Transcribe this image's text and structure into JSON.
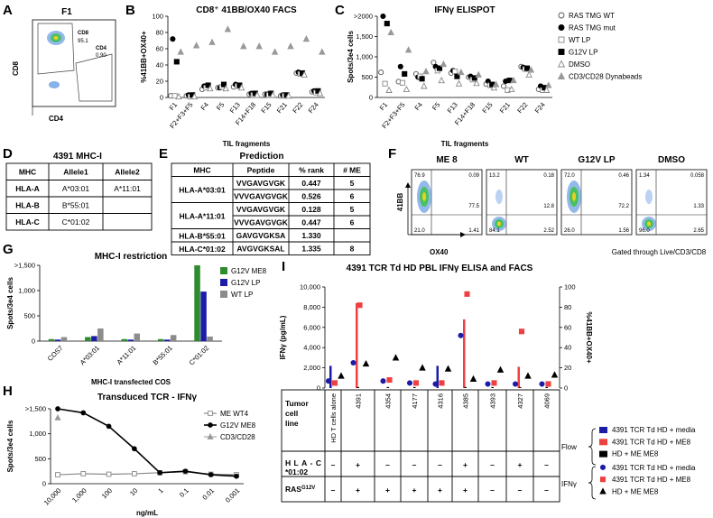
{
  "panels": {
    "A": {
      "letter": "A",
      "title": "F1",
      "x_axis": "CD4",
      "y_axis": "CD8",
      "gate1_label": "CD8",
      "gate1_value": "95.1",
      "gate2_label": "CD4",
      "gate2_value": "0.90"
    },
    "B": {
      "letter": "B"
    },
    "C": {
      "letter": "C"
    },
    "D": {
      "letter": "D",
      "title": "4391 MHC-I",
      "headers": [
        "MHC",
        "Allele1",
        "Allele2"
      ],
      "rows": [
        [
          "HLA-A",
          "A*03:01",
          "A*11:01"
        ],
        [
          "HLA-B",
          "B*55:01",
          ""
        ],
        [
          "HLA-C",
          "C*01:02",
          ""
        ]
      ]
    },
    "E": {
      "letter": "E",
      "title": "Prediction",
      "headers": [
        "MHC",
        "Peptide",
        "% rank",
        "# ME"
      ],
      "rows": [
        {
          "mhc": "HLA-A*03:01",
          "entries": [
            [
              "VVGAVGVGK",
              "0.447",
              "5"
            ],
            [
              "VVVGAVGVGK",
              "0.526",
              "6"
            ]
          ]
        },
        {
          "mhc": "HLA-A*11:01",
          "entries": [
            [
              "VVGAVGVGK",
              "0.128",
              "5"
            ],
            [
              "VVVGAVGVGK",
              "0.447",
              "6"
            ]
          ]
        },
        {
          "mhc": "HLA-B*55:01",
          "entries": [
            [
              "GAVGVGKSA",
              "1.330",
              ""
            ]
          ]
        },
        {
          "mhc": "HLA-C*01:02",
          "entries": [
            [
              "AVGVGKSAL",
              "1.335",
              "8"
            ]
          ]
        }
      ]
    },
    "F": {
      "letter": "F",
      "y_axis": "41BB",
      "x_axis": "OX40",
      "footnote": "Gated through Live/CD3/CD8",
      "plots": [
        {
          "title": "ME 8",
          "q": [
            "76.9",
            "0.09",
            "77.5",
            "21.0",
            "1.41"
          ]
        },
        {
          "title": "WT",
          "q": [
            "13.2",
            "0.18",
            "12.8",
            "84.1",
            "2.52"
          ]
        },
        {
          "title": "G12V LP",
          "q": [
            "72.0",
            "0.46",
            "72.2",
            "26.0",
            "1.56"
          ]
        },
        {
          "title": "DMSO",
          "q": [
            "1.34",
            "0.058",
            "1.33",
            "96.0",
            "2.65"
          ]
        }
      ]
    },
    "G": {
      "letter": "G"
    },
    "H": {
      "letter": "H"
    },
    "I": {
      "letter": "I",
      "title": "4391 TCR Td HD PBL IFNγ ELISA and FACS",
      "row_tumor": "Tumor cell line",
      "row_hla": "HLA-C*01:02",
      "row_ras": "RAS",
      "row_ras_sup": "G12V",
      "first_col": "HD T cells alone",
      "cell_lines": [
        "4391",
        "4354",
        "4177",
        "4316",
        "4385",
        "4393",
        "4327",
        "4069"
      ],
      "hla": [
        "–",
        "+",
        "–",
        "–",
        "–",
        "+",
        "–",
        "+",
        "–"
      ],
      "ras": [
        "–",
        "+",
        "+",
        "+",
        "+",
        "+",
        "–",
        "–",
        "–"
      ],
      "legend_flow_label": "Flow",
      "legend_ifng_label": "IFNγ",
      "legend": [
        "4391 TCR Td HD + media",
        "4391 TCR Td HD + ME8",
        "HD + ME ME8",
        "4391 TCR Td HD + media",
        "4391 TCR Td HD + ME8",
        "HD + ME ME8"
      ]
    }
  },
  "colors": {
    "green": "#2e8b2e",
    "blue": "#1c1ca8",
    "gray": "#8c8c8c",
    "red": "#ee4040",
    "black": "#000000"
  },
  "chart_data": [
    {
      "id": "B",
      "type": "scatter",
      "title": "CD8⁺ 41BB/OX40 FACS",
      "ylabel": "%41BB+OX40+",
      "xlabel": "TIL fragments",
      "ylim": [
        0,
        100
      ],
      "yticks": [
        "0",
        "20",
        "40",
        "60",
        "80",
        "100"
      ],
      "categories": [
        "F1",
        "F2+F3+F5",
        "F4",
        "F5",
        "F13",
        "F14+F18",
        "F15",
        "F21",
        "F22",
        "F24"
      ],
      "series": [
        {
          "name": "RAS TMG WT",
          "marker": "circle-open",
          "values": [
            2,
            2,
            10,
            12,
            13,
            4,
            4,
            2,
            30,
            7
          ]
        },
        {
          "name": "RAS TMG mut",
          "marker": "circle",
          "values": [
            72,
            3,
            14,
            12,
            16,
            5,
            4,
            3,
            31,
            8
          ]
        },
        {
          "name": "WT LP",
          "marker": "square-open",
          "values": [
            2,
            1,
            12,
            13,
            14,
            3,
            3,
            2,
            29,
            6
          ]
        },
        {
          "name": "G12V LP",
          "marker": "square",
          "values": [
            44,
            3,
            15,
            16,
            15,
            5,
            5,
            3,
            30,
            8
          ]
        },
        {
          "name": "DMSO",
          "marker": "triangle-open",
          "values": [
            1,
            1,
            11,
            11,
            12,
            3,
            3,
            2,
            28,
            5
          ]
        },
        {
          "name": "CD3/CD28 Dynabeads",
          "marker": "triangle",
          "values": [
            56,
            64,
            68,
            84,
            63,
            63,
            56,
            63,
            72,
            56
          ]
        }
      ]
    },
    {
      "id": "C",
      "type": "scatter",
      "title": "IFNγ ELISPOT",
      "ylabel": "Spots/3e4 cells",
      "xlabel": "TIL fragments",
      "ylim": [
        0,
        2000
      ],
      "yticks": [
        "0",
        "500",
        "1,000",
        "1,500",
        ">2000"
      ],
      "categories": [
        "F1",
        "F2+F3+F5",
        "F4",
        "F5",
        "F13",
        "F14+F18",
        "F15",
        "F21",
        "F22",
        "F24"
      ],
      "series": [
        {
          "name": "RAS TMG WT",
          "marker": "circle-open",
          "values": [
            620,
            390,
            580,
            860,
            600,
            500,
            330,
            280,
            760,
            200
          ]
        },
        {
          "name": "RAS TMG mut",
          "marker": "circle",
          "values": [
            2000,
            760,
            500,
            760,
            660,
            520,
            400,
            400,
            740,
            280
          ]
        },
        {
          "name": "WT LP",
          "marker": "square-open",
          "values": [
            340,
            360,
            520,
            660,
            640,
            440,
            300,
            180,
            700,
            180
          ]
        },
        {
          "name": "G12V LP",
          "marker": "square",
          "values": [
            1820,
            580,
            460,
            720,
            520,
            480,
            320,
            420,
            720,
            240
          ]
        },
        {
          "name": "DMSO",
          "marker": "triangle-open",
          "values": [
            180,
            200,
            280,
            420,
            340,
            350,
            240,
            200,
            560,
            180
          ]
        },
        {
          "name": "CD3/CD28 Dynabeads",
          "marker": "triangle",
          "values": [
            1600,
            1170,
            640,
            820,
            620,
            560,
            320,
            420,
            680,
            300
          ]
        }
      ]
    },
    {
      "id": "G",
      "type": "bar",
      "title": "MHC-I restriction",
      "ylabel": "Spots/3e4 cells",
      "xlabel": "MHC-I transfected COS",
      "ylim": [
        0,
        1500
      ],
      "yticks": [
        "0",
        "500",
        "1,000",
        ">1,500"
      ],
      "categories": [
        "COS7",
        "A*03:01",
        "A*11:01",
        "B*55:01",
        "C*01:02"
      ],
      "series": [
        {
          "name": "G12V ME8",
          "values": [
            40,
            80,
            40,
            40,
            1500
          ]
        },
        {
          "name": "G12V LP",
          "values": [
            30,
            100,
            30,
            30,
            980
          ]
        },
        {
          "name": "WT LP",
          "values": [
            80,
            250,
            150,
            120,
            90
          ]
        }
      ]
    },
    {
      "id": "H",
      "type": "line",
      "title": "Transduced TCR - IFNγ",
      "ylabel": "Spots/3e4 cells",
      "xlabel": "ng/mL",
      "ylim": [
        0,
        1500
      ],
      "yticks": [
        "0",
        "500",
        "1,000",
        ">1,500"
      ],
      "categories": [
        "10,000",
        "1,000",
        "100",
        "10",
        "1",
        "0.1",
        "0.01",
        "0.001"
      ],
      "series": [
        {
          "name": "ME WT4",
          "values": [
            180,
            200,
            190,
            200,
            220,
            240,
            190,
            180
          ]
        },
        {
          "name": "G12V ME8",
          "values": [
            1500,
            1420,
            1150,
            700,
            220,
            250,
            180,
            150
          ]
        },
        {
          "name": "CD3/CD28",
          "values": [
            1320,
            null,
            null,
            null,
            null,
            null,
            null,
            null
          ]
        }
      ]
    },
    {
      "id": "I",
      "type": "bar",
      "title": "4391 TCR Td HD PBL IFNγ ELISA and FACS",
      "ylabel": "IFNγ (pg/mL)",
      "y2label": "%41BB+OX40+",
      "ylim": [
        0,
        10000
      ],
      "yticks": [
        "0",
        "2,000",
        "4,000",
        "6,000",
        "8,000",
        "10,000"
      ],
      "y2lim": [
        0,
        100
      ],
      "y2ticks": [
        "0",
        "20",
        "40",
        "60",
        "80",
        "100"
      ],
      "categories": [
        "HD T cells alone",
        "4391",
        "4354",
        "4177",
        "4316",
        "4385",
        "4393",
        "4327",
        "4069"
      ],
      "flow_bars": [
        {
          "name": "4391 TCR Td HD + media",
          "values": [
            2200,
            null,
            null,
            null,
            2200,
            null,
            null,
            null,
            null
          ]
        },
        {
          "name": "4391 TCR Td HD + ME8",
          "values": [
            null,
            8400,
            null,
            null,
            null,
            6800,
            null,
            2100,
            null
          ]
        },
        {
          "name": "HD + ME ME8",
          "values": [
            null,
            100,
            100,
            100,
            null,
            100,
            100,
            100,
            100
          ]
        }
      ],
      "ifng_points": [
        {
          "name": "4391 TCR Td HD + media",
          "marker": "circle",
          "values": [
            7,
            25,
            7,
            5,
            4,
            52,
            4,
            4,
            4
          ]
        },
        {
          "name": "4391 TCR Td HD + ME8",
          "marker": "square",
          "values": [
            5,
            82,
            8,
            5,
            5,
            93,
            5,
            56,
            4
          ]
        },
        {
          "name": "HD + ME ME8",
          "marker": "triangle",
          "values": [
            12,
            24,
            30,
            20,
            19,
            9,
            18,
            12,
            13
          ]
        }
      ]
    }
  ]
}
